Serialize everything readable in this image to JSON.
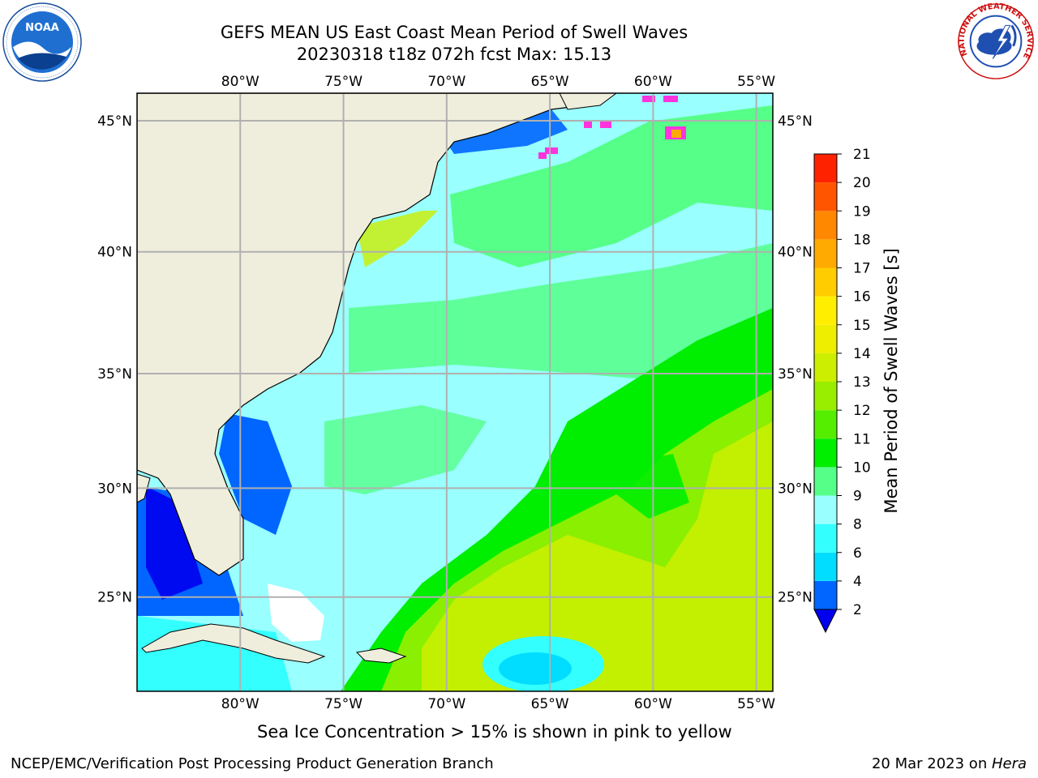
{
  "header": {
    "title_line1": "GEFS MEAN US East Coast Mean Period of Swell Waves",
    "title_line2": "20230318 t18z 072h fcst   Max: 15.13"
  },
  "map": {
    "lon_labels": [
      "80°W",
      "75°W",
      "70°W",
      "65°W",
      "60°W",
      "55°W"
    ],
    "lat_labels": [
      "45°N",
      "40°N",
      "35°N",
      "30°N",
      "25°N"
    ],
    "lon_range": [
      -85,
      -54.2
    ],
    "lat_range": [
      20.5,
      46
    ],
    "colors": {
      "land": "#efeedd",
      "grid": "#b0b0b0",
      "coast": "#000000",
      "sea_ice": "#ff33dd"
    }
  },
  "colorbar": {
    "label": "Mean Period of Swell Waves [s]",
    "ticks": [
      "2",
      "4",
      "6",
      "8",
      "9",
      "10",
      "11",
      "12",
      "13",
      "14",
      "15",
      "16",
      "17",
      "18",
      "19",
      "20",
      "21"
    ],
    "colors": [
      "#0066ff",
      "#00ddff",
      "#33ffff",
      "#99ffff",
      "#55ff88",
      "#00ee00",
      "#55ee00",
      "#99ee00",
      "#ccee00",
      "#eeee00",
      "#ffee00",
      "#ffcc00",
      "#ffaa00",
      "#ff8800",
      "#ff5500",
      "#ff2200",
      "#ff0000"
    ],
    "under_color": "#0000ee"
  },
  "captions": {
    "ice_note": "Sea Ice Concentration > 15% is shown in pink to yellow",
    "footer_left": "NCEP/EMC/Verification Post Processing Product Generation Branch",
    "footer_date": "20 Mar 2023 on ",
    "footer_machine": "Hera"
  },
  "logos": {
    "noaa_text": "NOAA",
    "nws_text": "NATIONAL WEATHER SERVICE"
  }
}
